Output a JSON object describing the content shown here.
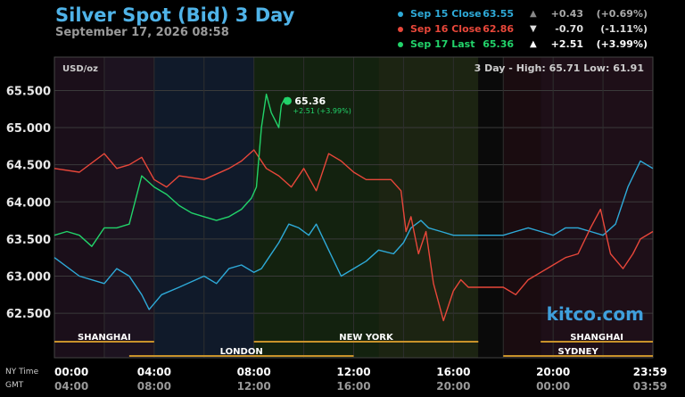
{
  "header": {
    "title": "Silver Spot (Bid) 3 Day",
    "subtitle": "September 17, 2026 08:58"
  },
  "legend": [
    {
      "name": "Sep 15 Close",
      "value": "63.55",
      "arrow": "▲",
      "change": "+0.43",
      "pct": "(+0.69%)",
      "color": "#2eaad8",
      "arrow_color": "#888888",
      "text_color": "#aaaaaa"
    },
    {
      "name": "Sep 16 Close",
      "value": "62.86",
      "arrow": "▼",
      "change": "-0.70",
      "pct": "(-1.11%)",
      "color": "#e8473a",
      "arrow_color": "#dddddd",
      "text_color": "#dddddd"
    },
    {
      "name": "Sep 17 Last",
      "value": "65.36",
      "arrow": "▲",
      "change": "+2.51",
      "pct": "(+3.99%)",
      "color": "#22d36a",
      "arrow_color": "#ffffff",
      "text_color": "#ffffff"
    }
  ],
  "chart_meta": {
    "unit_label": "USD/oz",
    "range_label": "3 Day - High: 65.71  Low: 61.91",
    "watermark": "kitco.com",
    "last_value": "65.36",
    "last_change": "+2.51 (+3.99%)"
  },
  "sessions_row1": [
    "SHANGHAI",
    "NEW YORK",
    "SHANGHAI"
  ],
  "sessions_row2": [
    "LONDON",
    "SYDNEY"
  ],
  "time_axis": {
    "label_ny": "NY Time",
    "label_gmt": "GMT",
    "ny": [
      "00:00",
      "04:00",
      "08:00",
      "12:00",
      "16:00",
      "20:00",
      "23:59"
    ],
    "gmt": [
      "04:00",
      "08:00",
      "12:00",
      "16:00",
      "20:00",
      "00:00",
      "03:59"
    ]
  },
  "chart_data": {
    "type": "line",
    "title": "Silver Spot (Bid) 3 Day",
    "ylabel": "USD/oz",
    "xlabel": "",
    "xlim": [
      0,
      24
    ],
    "ylim": [
      61.9,
      65.95
    ],
    "y_ticks": [
      "62.500",
      "63.000",
      "63.500",
      "64.000",
      "64.500",
      "65.000",
      "65.500"
    ],
    "grid": true,
    "legend_position": "top-right",
    "series": [
      {
        "name": "Sep 15 Close",
        "color": "#2eaad8",
        "x": [
          0,
          1,
          2,
          2.5,
          3,
          3.5,
          3.8,
          4.3,
          5,
          6,
          6.5,
          7,
          7.5,
          8,
          8.3,
          8.6,
          9,
          9.4,
          9.8,
          10.2,
          10.5,
          11,
          11.5,
          12,
          12.5,
          13,
          13.6,
          14,
          14.3,
          14.7,
          15,
          15.5,
          16,
          17,
          18,
          18.5,
          19,
          19.5,
          20,
          20.5,
          21,
          21.5,
          22,
          22.5,
          23,
          23.5,
          24
        ],
        "y": [
          63.25,
          63.0,
          62.9,
          63.1,
          63.0,
          62.75,
          62.55,
          62.75,
          62.85,
          63.0,
          62.9,
          63.1,
          63.15,
          63.05,
          63.1,
          63.25,
          63.45,
          63.7,
          63.65,
          63.55,
          63.7,
          63.35,
          63.0,
          63.1,
          63.2,
          63.35,
          63.3,
          63.45,
          63.65,
          63.75,
          63.65,
          63.6,
          63.55,
          63.55,
          63.55,
          63.6,
          63.65,
          63.6,
          63.55,
          63.65,
          63.65,
          63.6,
          63.55,
          63.7,
          64.2,
          64.55,
          64.45
        ]
      },
      {
        "name": "Sep 16 Close",
        "color": "#e8473a",
        "x": [
          0,
          1,
          2,
          2.5,
          3,
          3.5,
          4,
          4.5,
          5,
          6,
          7,
          7.5,
          8,
          8.5,
          9,
          9.5,
          10,
          10.5,
          11,
          11.5,
          12,
          12.5,
          13,
          13.5,
          13.9,
          14.1,
          14.3,
          14.6,
          14.9,
          15.2,
          15.6,
          16,
          16.3,
          16.6,
          17,
          18,
          18.5,
          19,
          19.5,
          20,
          20.5,
          21,
          21.5,
          21.9,
          22.3,
          22.8,
          23.2,
          23.5,
          24
        ],
        "y": [
          64.45,
          64.4,
          64.65,
          64.45,
          64.5,
          64.6,
          64.3,
          64.2,
          64.35,
          64.3,
          64.45,
          64.55,
          64.7,
          64.45,
          64.35,
          64.2,
          64.45,
          64.15,
          64.65,
          64.55,
          64.4,
          64.3,
          64.3,
          64.3,
          64.15,
          63.6,
          63.8,
          63.3,
          63.6,
          62.9,
          62.4,
          62.8,
          62.95,
          62.85,
          62.85,
          62.85,
          62.75,
          62.95,
          63.05,
          63.15,
          63.25,
          63.3,
          63.65,
          63.9,
          63.3,
          63.1,
          63.3,
          63.5,
          63.6
        ]
      },
      {
        "name": "Sep 17 Last",
        "color": "#22d36a",
        "x": [
          0,
          0.5,
          1,
          1.5,
          2,
          2.5,
          3,
          3.5,
          4,
          4.5,
          5,
          5.5,
          6,
          6.5,
          7,
          7.5,
          7.9,
          8.1,
          8.3,
          8.5,
          8.7,
          8.85,
          9.0,
          9.1,
          9.25,
          9.35
        ],
        "y": [
          63.55,
          63.6,
          63.55,
          63.4,
          63.65,
          63.65,
          63.7,
          64.35,
          64.2,
          64.1,
          63.95,
          63.85,
          63.8,
          63.75,
          63.8,
          63.9,
          64.05,
          64.2,
          65.0,
          65.45,
          65.2,
          65.1,
          65.0,
          65.3,
          65.4,
          65.36
        ]
      }
    ]
  }
}
